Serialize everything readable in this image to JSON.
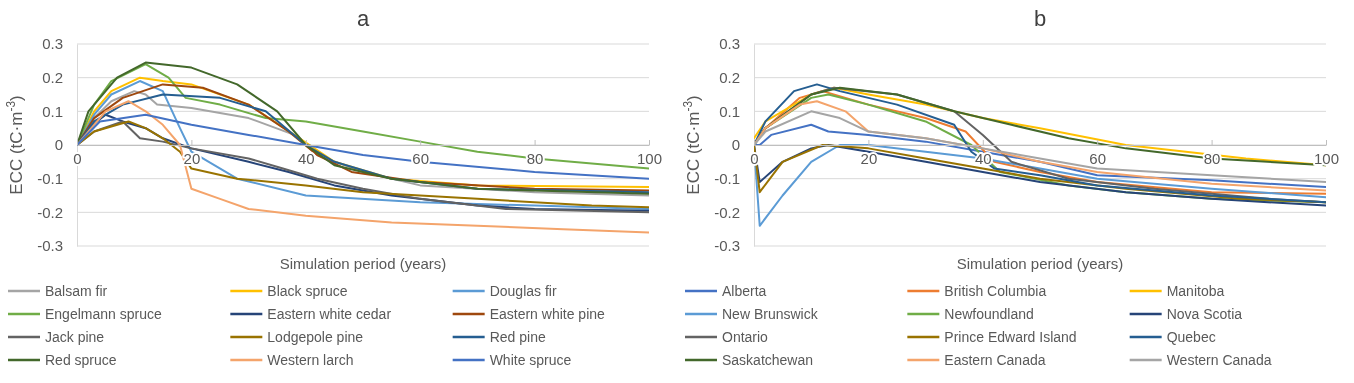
{
  "chart_data": [
    {
      "type": "line",
      "title": "a",
      "xlabel": "Simulation period (years)",
      "ylabel": "ECC (tC·m$^{-3}$)",
      "xlim": [
        0,
        100
      ],
      "xticks": [
        0,
        20,
        40,
        60,
        80,
        100
      ],
      "ylim": [
        -0.3,
        0.3
      ],
      "yticks": [
        -0.3,
        -0.2,
        -0.1,
        0,
        0.1,
        0.2,
        0.3
      ],
      "grid": "y",
      "legend": "bottom",
      "marker": "none",
      "line_style": "solid",
      "series": [
        {
          "name": "Balsam fir",
          "color": "#a5a5a5",
          "x": [
            0,
            3,
            6,
            10,
            12,
            14,
            20,
            30,
            38,
            42,
            50,
            60,
            80,
            100
          ],
          "values": [
            0,
            0.08,
            0.13,
            0.16,
            0.15,
            0.12,
            0.11,
            0.08,
            0.03,
            -0.03,
            -0.08,
            -0.12,
            -0.14,
            -0.15
          ]
        },
        {
          "name": "Black spruce",
          "color": "#ffc000",
          "x": [
            0,
            3,
            6,
            11,
            15,
            20,
            30,
            38,
            45,
            55,
            70,
            100
          ],
          "values": [
            0,
            0.1,
            0.16,
            0.2,
            0.19,
            0.18,
            0.12,
            0.03,
            -0.05,
            -0.1,
            -0.12,
            -0.125
          ]
        },
        {
          "name": "Douglas fir",
          "color": "#5b9bd5",
          "x": [
            0,
            3,
            6,
            11,
            15,
            18,
            20,
            28,
            40,
            60,
            80,
            100
          ],
          "values": [
            0,
            0.09,
            0.15,
            0.19,
            0.16,
            0.05,
            -0.02,
            -0.1,
            -0.15,
            -0.17,
            -0.18,
            -0.19
          ]
        },
        {
          "name": "Engelmann spruce",
          "color": "#70ad47",
          "x": [
            0,
            3,
            6,
            12,
            16,
            19,
            25,
            33,
            40,
            50,
            60,
            70,
            80,
            100
          ],
          "values": [
            0,
            0.12,
            0.19,
            0.24,
            0.2,
            0.14,
            0.12,
            0.08,
            0.07,
            0.04,
            0.01,
            -0.02,
            -0.04,
            -0.07
          ]
        },
        {
          "name": "Eastern white cedar",
          "color": "#264478",
          "x": [
            0,
            2,
            5,
            8,
            12,
            15,
            20,
            30,
            37,
            45,
            55,
            70,
            80,
            100
          ],
          "values": [
            0,
            0.05,
            0.09,
            0.07,
            0.05,
            0.02,
            -0.01,
            -0.05,
            -0.08,
            -0.12,
            -0.15,
            -0.18,
            -0.19,
            -0.195
          ]
        },
        {
          "name": "Eastern white pine",
          "color": "#9e480e",
          "x": [
            0,
            3,
            8,
            15,
            22,
            30,
            37,
            42,
            48,
            60,
            80,
            100
          ],
          "values": [
            0,
            0.08,
            0.14,
            0.18,
            0.17,
            0.12,
            0.04,
            -0.03,
            -0.08,
            -0.11,
            -0.13,
            -0.135
          ]
        },
        {
          "name": "Jack pine",
          "color": "#636363",
          "x": [
            0,
            3,
            8,
            11,
            15,
            20,
            30,
            36,
            42,
            50,
            60,
            75,
            100
          ],
          "values": [
            0,
            0.04,
            0.07,
            0.02,
            0.01,
            -0.01,
            -0.04,
            -0.07,
            -0.1,
            -0.13,
            -0.16,
            -0.19,
            -0.2
          ]
        },
        {
          "name": "Lodgepole pine",
          "color": "#997300",
          "x": [
            0,
            3,
            9,
            12,
            15,
            18,
            20,
            28,
            40,
            50,
            70,
            90,
            100
          ],
          "values": [
            0,
            0.04,
            0.07,
            0.05,
            0.02,
            -0.02,
            -0.07,
            -0.1,
            -0.12,
            -0.14,
            -0.16,
            -0.18,
            -0.185
          ]
        },
        {
          "name": "Red pine",
          "color": "#255e91",
          "x": [
            0,
            3,
            8,
            15,
            25,
            33,
            40,
            45,
            55,
            70,
            100
          ],
          "values": [
            0,
            0.07,
            0.12,
            0.15,
            0.14,
            0.1,
            0,
            -0.05,
            -0.1,
            -0.13,
            -0.14
          ]
        },
        {
          "name": "Red spruce",
          "color": "#43682b",
          "x": [
            0,
            2,
            7,
            12,
            20,
            28,
            35,
            40,
            45,
            55,
            70,
            100
          ],
          "values": [
            0,
            0.1,
            0.2,
            0.245,
            0.23,
            0.18,
            0.1,
            0,
            -0.06,
            -0.1,
            -0.13,
            -0.145
          ]
        },
        {
          "name": "Western larch",
          "color": "#f4a46b",
          "x": [
            0,
            5,
            9,
            12,
            15,
            18,
            20,
            25,
            30,
            40,
            55,
            70,
            85,
            100
          ],
          "values": [
            0,
            0.1,
            0.13,
            0.1,
            0.06,
            0,
            -0.13,
            -0.16,
            -0.19,
            -0.21,
            -0.23,
            -0.24,
            -0.25,
            -0.26
          ]
        },
        {
          "name": "White spruce",
          "color": "#4472c4",
          "x": [
            0,
            4,
            12,
            20,
            30,
            40,
            50,
            60,
            80,
            100
          ],
          "values": [
            0,
            0.07,
            0.09,
            0.06,
            0.03,
            0,
            -0.03,
            -0.05,
            -0.08,
            -0.1
          ]
        }
      ]
    },
    {
      "type": "line",
      "title": "b",
      "xlabel": "Simulation period (years)",
      "ylabel": "ECC (tC·m$^{-3}$)",
      "xlim": [
        0,
        100
      ],
      "xticks": [
        0,
        20,
        40,
        60,
        80,
        100
      ],
      "ylim": [
        -0.3,
        0.3
      ],
      "yticks": [
        -0.3,
        -0.2,
        -0.1,
        0,
        0.1,
        0.2,
        0.3
      ],
      "grid": "y",
      "legend": "bottom",
      "marker": "none",
      "line_style": "solid",
      "series": [
        {
          "name": "Alberta",
          "color": "#4472c4",
          "x": [
            0,
            1,
            3,
            10,
            13,
            20,
            30,
            40,
            50,
            60,
            80,
            100
          ],
          "values": [
            0,
            0,
            0.03,
            0.06,
            0.04,
            0.03,
            0.01,
            -0.02,
            -0.05,
            -0.09,
            -0.105,
            -0.125
          ]
        },
        {
          "name": "British Columbia",
          "color": "#ed7d31",
          "x": [
            0,
            2,
            8,
            12,
            20,
            30,
            37,
            42,
            50,
            60,
            80,
            100
          ],
          "values": [
            0,
            0.05,
            0.14,
            0.16,
            0.12,
            0.08,
            0.04,
            -0.05,
            -0.08,
            -0.11,
            -0.14,
            -0.145
          ]
        },
        {
          "name": "Manitoba",
          "color": "#ffc000",
          "x": [
            0,
            2,
            10,
            14,
            20,
            30,
            40,
            50,
            65,
            86,
            100
          ],
          "values": [
            0.02,
            0.07,
            0.15,
            0.17,
            0.15,
            0.12,
            0.08,
            0.05,
            0,
            -0.04,
            -0.06
          ]
        },
        {
          "name": "New Brunswick",
          "color": "#5b9bd5",
          "x": [
            0,
            1,
            5,
            10,
            15,
            20,
            30,
            40,
            50,
            60,
            80,
            100
          ],
          "values": [
            0,
            -0.24,
            -0.15,
            -0.05,
            0,
            0,
            -0.02,
            -0.04,
            -0.07,
            -0.1,
            -0.13,
            -0.155
          ]
        },
        {
          "name": "Newfoundland",
          "color": "#70ad47",
          "x": [
            0,
            2,
            10,
            13,
            20,
            30,
            38,
            43,
            55,
            65,
            80,
            100
          ],
          "values": [
            0,
            0.05,
            0.14,
            0.15,
            0.12,
            0.07,
            0,
            -0.08,
            -0.12,
            -0.14,
            -0.16,
            -0.17
          ]
        },
        {
          "name": "Nova Scotia",
          "color": "#264478",
          "x": [
            0,
            1,
            5,
            10,
            13,
            20,
            30,
            40,
            50,
            65,
            80,
            100
          ],
          "values": [
            0,
            -0.11,
            -0.05,
            -0.01,
            0,
            -0.02,
            -0.05,
            -0.08,
            -0.11,
            -0.14,
            -0.16,
            -0.18
          ]
        },
        {
          "name": "Ontario",
          "color": "#636363",
          "x": [
            0,
            2,
            10,
            14,
            25,
            35,
            40,
            45,
            55,
            70,
            90,
            100
          ],
          "values": [
            0,
            0.05,
            0.15,
            0.17,
            0.15,
            0.1,
            0.03,
            -0.05,
            -0.1,
            -0.13,
            -0.16,
            -0.17
          ]
        },
        {
          "name": "Prince Edward Island",
          "color": "#997300",
          "x": [
            0,
            1,
            5,
            12,
            20,
            30,
            40,
            50,
            65,
            85,
            100
          ],
          "values": [
            0,
            -0.14,
            -0.05,
            0,
            -0.01,
            -0.04,
            -0.07,
            -0.1,
            -0.13,
            -0.16,
            -0.17
          ]
        },
        {
          "name": "Quebec",
          "color": "#255e91",
          "x": [
            0,
            2,
            7,
            11,
            15,
            25,
            35,
            38,
            42,
            50,
            60,
            80,
            100
          ],
          "values": [
            0,
            0.07,
            0.16,
            0.18,
            0.16,
            0.12,
            0.06,
            -0.02,
            -0.07,
            -0.09,
            -0.12,
            -0.15,
            -0.17
          ]
        },
        {
          "name": "Saskatchewan",
          "color": "#43682b",
          "x": [
            0,
            2,
            10,
            15,
            25,
            35,
            45,
            55,
            65,
            80,
            100
          ],
          "values": [
            0,
            0.05,
            0.15,
            0.17,
            0.15,
            0.1,
            0.06,
            0.02,
            -0.01,
            -0.04,
            -0.06
          ]
        },
        {
          "name": "Eastern Canada",
          "color": "#f4a46b",
          "x": [
            0,
            2,
            8,
            11,
            16,
            20,
            30,
            40,
            50,
            60,
            80,
            100
          ],
          "values": [
            0,
            0.05,
            0.12,
            0.13,
            0.1,
            0.04,
            0.02,
            -0.01,
            -0.05,
            -0.08,
            -0.115,
            -0.135
          ]
        },
        {
          "name": "Western Canada",
          "color": "#a5a5a5",
          "x": [
            0,
            2,
            10,
            15,
            20,
            30,
            40,
            50,
            60,
            80,
            100
          ],
          "values": [
            0,
            0.04,
            0.1,
            0.08,
            0.04,
            0.02,
            -0.01,
            -0.04,
            -0.07,
            -0.09,
            -0.11
          ]
        }
      ]
    }
  ]
}
